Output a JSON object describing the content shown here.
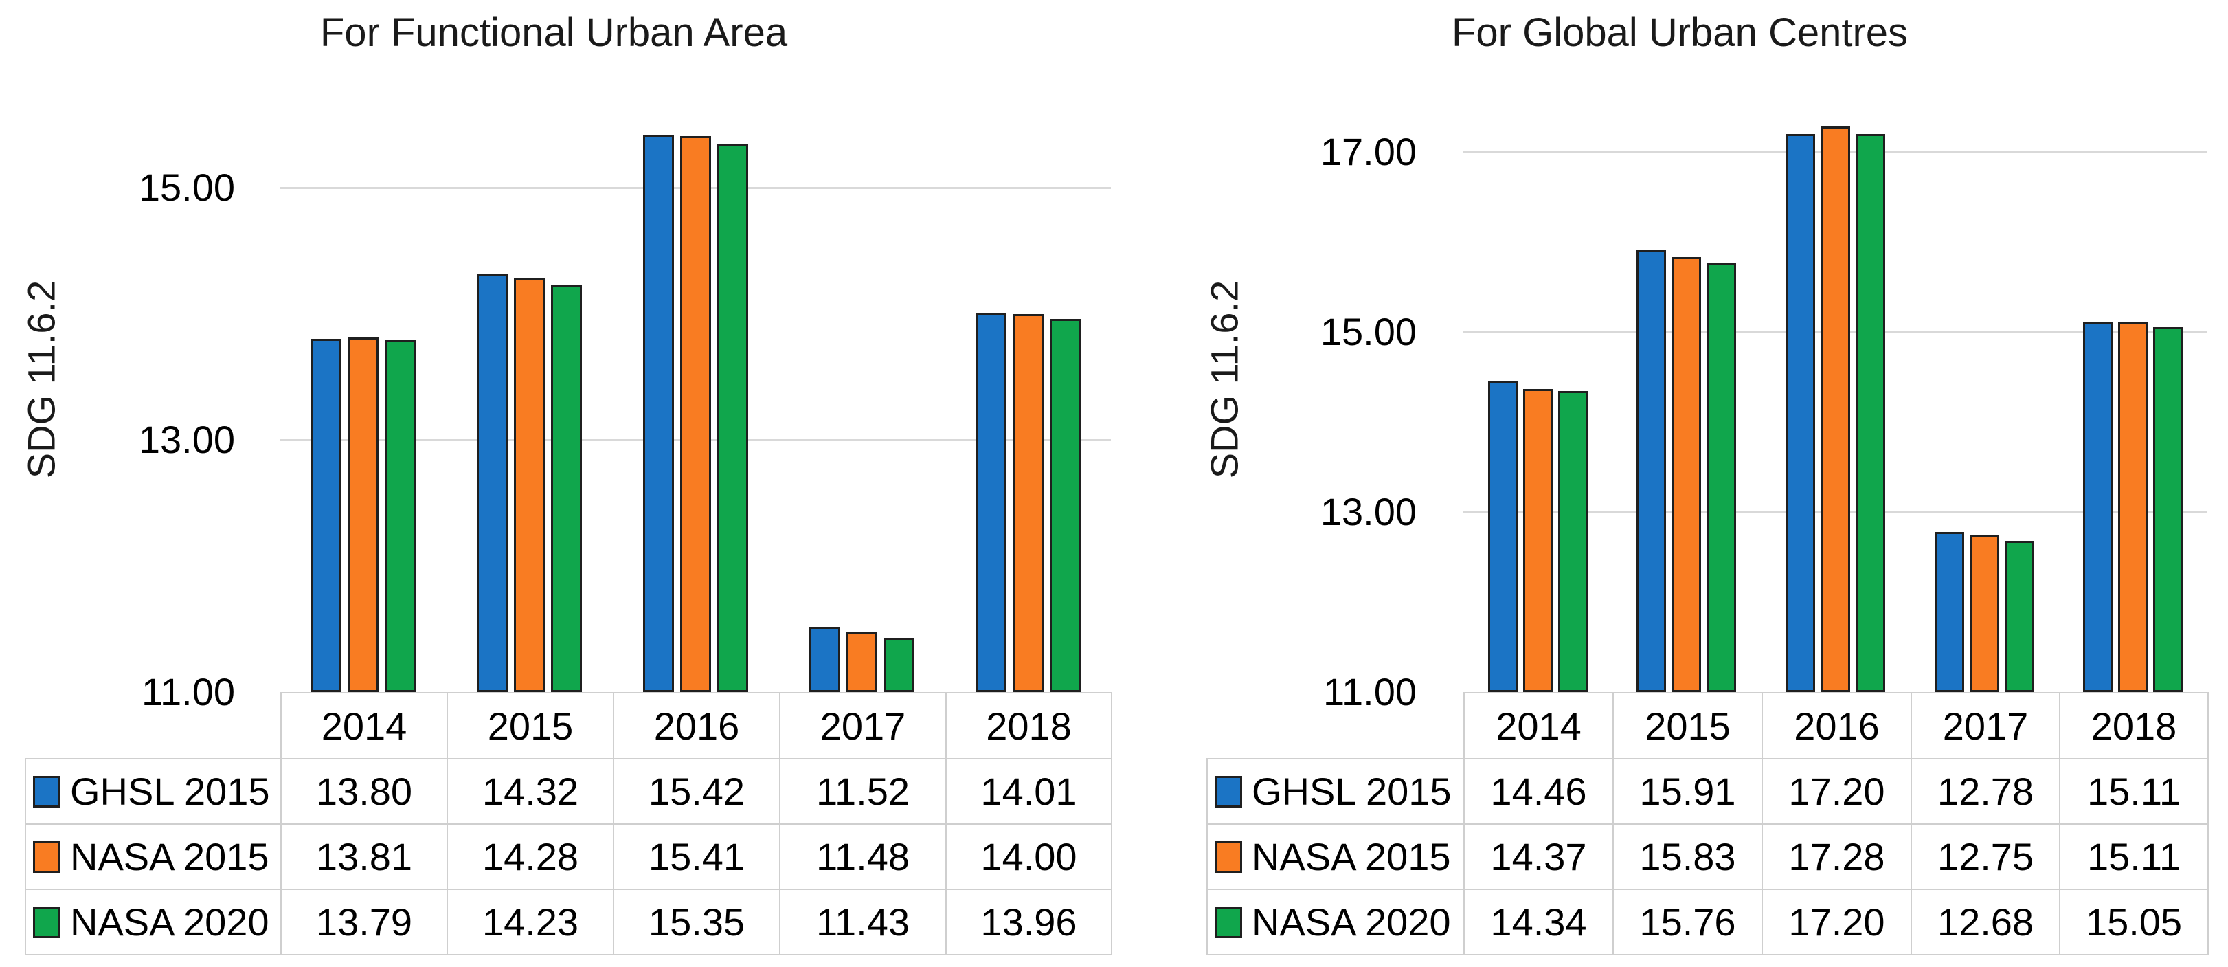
{
  "figure": {
    "background": "#ffffff"
  },
  "colors": {
    "series_fill": [
      "#1B74C5",
      "#F97C22",
      "#10A64C"
    ],
    "bar_outline": "#1F1F1F",
    "gridline": "#D9D9D9",
    "table_border": "#CFCFCF",
    "text": "#000000",
    "title_text": "#1A1A1A"
  },
  "chart_data": [
    {
      "type": "bar",
      "title": "For Functional Urban Area",
      "ylabel": "SDG 11.6.2",
      "categories": [
        "2014",
        "2015",
        "2016",
        "2017",
        "2018"
      ],
      "series": [
        {
          "name": "GHSL 2015",
          "values": [
            13.8,
            14.32,
            15.42,
            11.52,
            14.01
          ]
        },
        {
          "name": "NASA 2015",
          "values": [
            13.81,
            14.28,
            15.41,
            11.48,
            14.0
          ]
        },
        {
          "name": "NASA 2020",
          "values": [
            13.79,
            14.23,
            15.35,
            11.43,
            13.96
          ]
        }
      ],
      "y_ticks": [
        15.0,
        13.0,
        11.0
      ],
      "ylim": [
        11.0,
        15.6
      ],
      "grid": "horizontal-light",
      "legend_position": "data-table-left",
      "value_format_decimals": 2
    },
    {
      "type": "bar",
      "title": "For Global Urban Centres",
      "ylabel": "SDG 11.6.2",
      "categories": [
        "2014",
        "2015",
        "2016",
        "2017",
        "2018"
      ],
      "series": [
        {
          "name": "GHSL 2015",
          "values": [
            14.46,
            15.91,
            17.2,
            12.78,
            15.11
          ]
        },
        {
          "name": "NASA 2015",
          "values": [
            14.37,
            15.83,
            17.28,
            12.75,
            15.11
          ]
        },
        {
          "name": "NASA 2020",
          "values": [
            14.34,
            15.76,
            17.2,
            12.68,
            15.05
          ]
        }
      ],
      "y_ticks": [
        17.0,
        15.0,
        13.0,
        11.0
      ],
      "ylim": [
        11.0,
        17.6
      ],
      "grid": "horizontal-light",
      "legend_position": "data-table-left",
      "value_format_decimals": 2
    }
  ]
}
